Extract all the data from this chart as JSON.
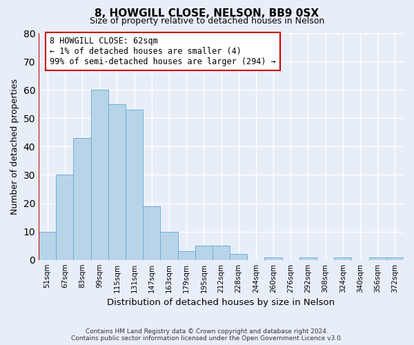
{
  "title": "8, HOWGILL CLOSE, NELSON, BB9 0SX",
  "subtitle": "Size of property relative to detached houses in Nelson",
  "xlabel": "Distribution of detached houses by size in Nelson",
  "ylabel": "Number of detached properties",
  "bin_labels": [
    "51sqm",
    "67sqm",
    "83sqm",
    "99sqm",
    "115sqm",
    "131sqm",
    "147sqm",
    "163sqm",
    "179sqm",
    "195sqm",
    "212sqm",
    "228sqm",
    "244sqm",
    "260sqm",
    "276sqm",
    "292sqm",
    "308sqm",
    "324sqm",
    "340sqm",
    "356sqm",
    "372sqm"
  ],
  "bar_heights": [
    10,
    30,
    43,
    60,
    55,
    53,
    19,
    10,
    3,
    5,
    5,
    2,
    0,
    1,
    0,
    1,
    0,
    1,
    0,
    1,
    1
  ],
  "bar_color": "#b8d4e8",
  "bar_edge_color": "#6aafd4",
  "highlight_line_color": "#cc0000",
  "ylim": [
    0,
    80
  ],
  "yticks": [
    0,
    10,
    20,
    30,
    40,
    50,
    60,
    70,
    80
  ],
  "annotation_title": "8 HOWGILL CLOSE: 62sqm",
  "annotation_line1": "← 1% of detached houses are smaller (4)",
  "annotation_line2": "99% of semi-detached houses are larger (294) →",
  "annotation_box_color": "#ffffff",
  "annotation_box_edge_color": "#cc0000",
  "footer_line1": "Contains HM Land Registry data © Crown copyright and database right 2024.",
  "footer_line2": "Contains public sector information licensed under the Open Government Licence v3.0.",
  "background_color": "#e8eef8",
  "grid_color": "#ffffff"
}
